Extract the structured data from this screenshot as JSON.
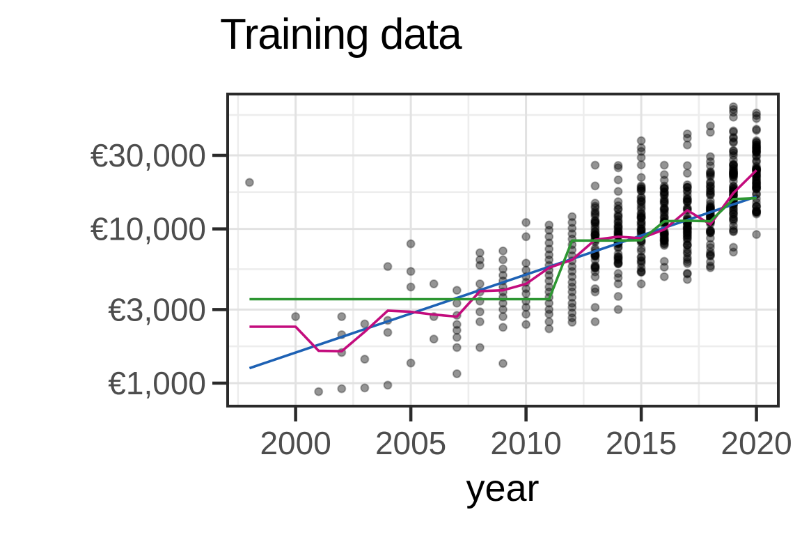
{
  "figure": {
    "title": "Training data",
    "x_axis_label": "year"
  },
  "colors": {
    "blue_line": "#1d61b4",
    "magenta_line": "#c30c7d",
    "green_line": "#2d9632",
    "point": "#000000",
    "grid_major": "#e2e2e2",
    "grid_minor": "#ededed",
    "axis_text": "#4d4d4d",
    "panel_border": "#2a2a2a",
    "panel_background": "#ffffff"
  },
  "chart_data": {
    "type": "scatter",
    "title": "Training data",
    "xlabel": "year",
    "ylabel": "",
    "y_scale": "log10",
    "grid": true,
    "legend": false,
    "xlim": [
      1997.05,
      2020.95
    ],
    "ylim": [
      709,
      74900
    ],
    "x_ticks": [
      {
        "value": 2000,
        "label": "2000"
      },
      {
        "value": 2005,
        "label": "2005"
      },
      {
        "value": 2010,
        "label": "2010"
      },
      {
        "value": 2015,
        "label": "2015"
      },
      {
        "value": 2020,
        "label": "2020"
      }
    ],
    "x_minor": [
      1997.5,
      2002.5,
      2007.5,
      2012.5,
      2017.5
    ],
    "y_ticks": [
      {
        "value": 1000,
        "label": "€1,000"
      },
      {
        "value": 3000,
        "label": "€3,000"
      },
      {
        "value": 10000,
        "label": "€10,000"
      },
      {
        "value": 30000,
        "label": "€30,000"
      }
    ],
    "y_minor": [
      1732,
      5477,
      17321,
      54772
    ],
    "points": [
      [
        1998,
        20000
      ],
      [
        2000,
        2700
      ],
      [
        2001,
        880
      ],
      [
        2002,
        2700
      ],
      [
        2002,
        2060
      ],
      [
        2002,
        1580
      ],
      [
        2002,
        920
      ],
      [
        2003,
        2420
      ],
      [
        2003,
        1430
      ],
      [
        2003,
        930
      ],
      [
        2004,
        5700
      ],
      [
        2004,
        2550
      ],
      [
        2004,
        2130
      ],
      [
        2004,
        970
      ],
      [
        2005,
        8000
      ],
      [
        2005,
        5300
      ],
      [
        2005,
        4200
      ],
      [
        2005,
        1350
      ],
      [
        2006,
        4400
      ],
      [
        2006,
        2700
      ],
      [
        2006,
        1930
      ],
      [
        2007,
        4000
      ],
      [
        2007,
        3300
      ],
      [
        2007,
        2750
      ],
      [
        2007,
        2400
      ],
      [
        2007,
        2200
      ],
      [
        2007,
        1980
      ],
      [
        2007,
        1700
      ],
      [
        2007,
        1150
      ],
      [
        2008,
        7000
      ],
      [
        2008,
        6300
      ],
      [
        2008,
        5800
      ],
      [
        2008,
        4400
      ],
      [
        2008,
        3900
      ],
      [
        2008,
        3400
      ],
      [
        2008,
        2900
      ],
      [
        2008,
        2500
      ],
      [
        2008,
        1700
      ],
      [
        2009,
        7200
      ],
      [
        2009,
        6300
      ],
      [
        2009,
        5500
      ],
      [
        2009,
        5000
      ],
      [
        2009,
        4600
      ],
      [
        2009,
        4200
      ],
      [
        2009,
        3900
      ],
      [
        2009,
        3600
      ],
      [
        2009,
        3300
      ],
      [
        2009,
        3000
      ],
      [
        2009,
        2700
      ],
      [
        2009,
        2300
      ],
      [
        2009,
        1340
      ],
      [
        2010,
        11000
      ],
      [
        2010,
        8900
      ],
      [
        2010,
        6000
      ],
      [
        2010,
        5400
      ],
      [
        2010,
        4900
      ],
      [
        2010,
        4500
      ],
      [
        2010,
        4100
      ],
      [
        2010,
        3800
      ],
      [
        2010,
        3400
      ],
      [
        2010,
        3100
      ],
      [
        2010,
        2800
      ],
      [
        2010,
        2400
      ],
      [
        2011,
        10600
      ],
      [
        2011,
        9800
      ],
      [
        2011,
        8900
      ],
      [
        2011,
        8100
      ],
      [
        2011,
        7400
      ],
      [
        2011,
        6800
      ],
      [
        2011,
        6300
      ],
      [
        2011,
        5800
      ],
      [
        2011,
        5400
      ],
      [
        2011,
        5000
      ],
      [
        2011,
        4600
      ],
      [
        2011,
        4200
      ],
      [
        2011,
        3900
      ],
      [
        2011,
        3600
      ],
      [
        2011,
        3300
      ],
      [
        2011,
        3000
      ],
      [
        2011,
        2800
      ],
      [
        2011,
        2500
      ],
      [
        2011,
        2250
      ],
      [
        2012,
        12000
      ],
      [
        2012,
        11000
      ],
      [
        2012,
        10100
      ],
      [
        2012,
        9300
      ],
      [
        2012,
        8600
      ],
      [
        2012,
        7900
      ],
      [
        2012,
        7300
      ],
      [
        2012,
        6700
      ],
      [
        2012,
        6200
      ],
      [
        2012,
        5700
      ],
      [
        2012,
        5300
      ],
      [
        2012,
        4900
      ],
      [
        2012,
        4500
      ],
      [
        2012,
        4200
      ],
      [
        2012,
        3900
      ],
      [
        2012,
        3600
      ],
      [
        2012,
        3300
      ],
      [
        2012,
        3100
      ],
      [
        2012,
        2850
      ],
      [
        2012,
        2650
      ],
      [
        2012,
        2480
      ],
      [
        2013,
        25900
      ],
      [
        2013,
        3100
      ],
      [
        2013,
        2500
      ],
      [
        2014,
        25800
      ],
      [
        2014,
        24900
      ],
      [
        2014,
        20800
      ],
      [
        2014,
        3650
      ],
      [
        2014,
        3000
      ],
      [
        2015,
        37300
      ],
      [
        2015,
        33600
      ],
      [
        2015,
        31800
      ],
      [
        2015,
        29000
      ],
      [
        2017,
        41300
      ],
      [
        2017,
        38800
      ],
      [
        2017,
        35000
      ],
      [
        2018,
        46500
      ],
      [
        2018,
        42300
      ],
      [
        2019,
        62000
      ],
      [
        2019,
        59500
      ],
      [
        2019,
        57000
      ],
      [
        2019,
        7070
      ],
      [
        2020,
        56400
      ],
      [
        2020,
        54300
      ]
    ],
    "point_bands": [
      {
        "year": 2013,
        "n": 44,
        "min": 3900,
        "max": 19000
      },
      {
        "year": 2014,
        "n": 44,
        "min": 4400,
        "max": 17500
      },
      {
        "year": 2015,
        "n": 50,
        "min": 4400,
        "max": 26000
      },
      {
        "year": 2016,
        "n": 54,
        "min": 4900,
        "max": 25900
      },
      {
        "year": 2017,
        "n": 58,
        "min": 4700,
        "max": 25700
      },
      {
        "year": 2018,
        "n": 60,
        "min": 5600,
        "max": 29400
      },
      {
        "year": 2019,
        "n": 68,
        "min": 7600,
        "max": 53000
      },
      {
        "year": 2020,
        "n": 66,
        "min": 9200,
        "max": 52000
      }
    ],
    "series": [
      {
        "name": "blue-fit-line",
        "color_key": "blue_line",
        "points": [
          [
            1998,
            1250
          ],
          [
            2020,
            16200
          ]
        ]
      },
      {
        "name": "magenta-fit-line",
        "color_key": "magenta_line",
        "points": [
          [
            1998,
            2320
          ],
          [
            1999,
            2320
          ],
          [
            2000,
            2320
          ],
          [
            2001,
            1620
          ],
          [
            2002,
            1610
          ],
          [
            2003,
            2150
          ],
          [
            2004,
            2950
          ],
          [
            2005,
            2900
          ],
          [
            2006,
            2780
          ],
          [
            2007,
            2700
          ],
          [
            2008,
            3950
          ],
          [
            2009,
            4000
          ],
          [
            2010,
            4400
          ],
          [
            2011,
            5600
          ],
          [
            2012,
            6300
          ],
          [
            2013,
            8500
          ],
          [
            2014,
            8900
          ],
          [
            2015,
            8700
          ],
          [
            2016,
            9900
          ],
          [
            2017,
            13200
          ],
          [
            2018,
            10700
          ],
          [
            2019,
            17100
          ],
          [
            2020,
            24000
          ]
        ]
      },
      {
        "name": "green-fit-line",
        "color_key": "green_line",
        "points": [
          [
            1998,
            3500
          ],
          [
            2011,
            3500
          ],
          [
            2012,
            8400
          ],
          [
            2014,
            8400
          ],
          [
            2015,
            8450
          ],
          [
            2016,
            11200
          ],
          [
            2017,
            11300
          ],
          [
            2018,
            11200
          ],
          [
            2019,
            15600
          ],
          [
            2020,
            15800
          ]
        ]
      }
    ]
  }
}
